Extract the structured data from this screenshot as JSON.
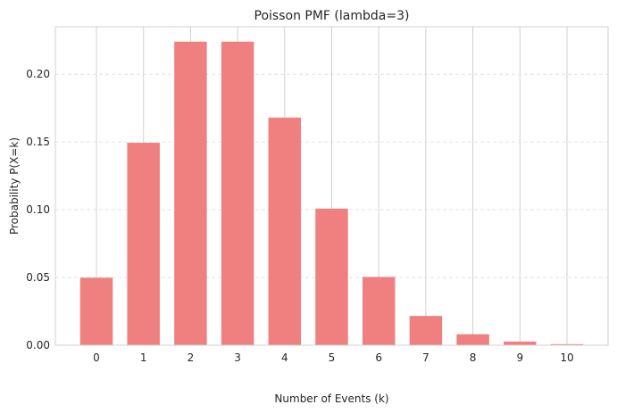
{
  "chart_data": {
    "type": "bar",
    "title": "Poisson PMF (lambda=3)",
    "xlabel": "Number of Events (k)",
    "ylabel": "Probability P(X=k)",
    "categories": [
      "0",
      "1",
      "2",
      "3",
      "4",
      "5",
      "6",
      "7",
      "8",
      "9",
      "10"
    ],
    "values": [
      0.0498,
      0.1494,
      0.224,
      0.224,
      0.168,
      0.1008,
      0.0504,
      0.0216,
      0.0081,
      0.0027,
      0.0008
    ],
    "ylim": [
      0,
      0.235
    ],
    "yticks": [
      0.0,
      0.05,
      0.1,
      0.15,
      0.2
    ],
    "ytick_labels": [
      "0.00",
      "0.05",
      "0.10",
      "0.15",
      "0.20"
    ],
    "bar_color": "#f08080",
    "grid": true
  }
}
